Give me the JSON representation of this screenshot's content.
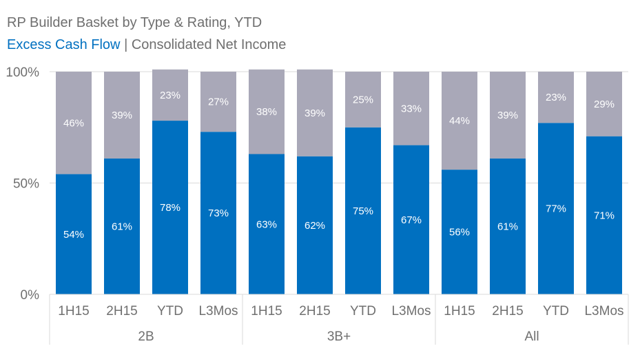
{
  "title": "RP Builder Basket by Type & Rating, YTD",
  "subtitle": {
    "series1": "Excess Cash Flow",
    "separator": "|",
    "series2": "Consolidated Net Income"
  },
  "chart_data": {
    "type": "bar",
    "stacked": true,
    "title": "RP Builder Basket by Type & Rating, YTD",
    "categories": [
      "1H15",
      "2H15",
      "YTD",
      "L3Mos",
      "1H15",
      "2H15",
      "YTD",
      "L3Mos",
      "1H15",
      "2H15",
      "YTD",
      "L3Mos"
    ],
    "groups": [
      {
        "label": "2B",
        "start": 0,
        "count": 4
      },
      {
        "label": "3B+",
        "start": 4,
        "count": 4
      },
      {
        "label": "All",
        "start": 8,
        "count": 4
      }
    ],
    "series": [
      {
        "name": "Excess Cash Flow",
        "color": "#0070c0",
        "label_color": "#ffffff",
        "values": [
          54,
          61,
          78,
          73,
          63,
          62,
          75,
          67,
          56,
          61,
          77,
          71
        ],
        "labels": [
          "54%",
          "61%",
          "78%",
          "73%",
          "63%",
          "62%",
          "75%",
          "67%",
          "56%",
          "61%",
          "77%",
          "71%"
        ]
      },
      {
        "name": "Consolidated Net Income",
        "color": "#a9a8b8",
        "label_color": "#ffffff",
        "values": [
          46,
          39,
          23,
          27,
          38,
          39,
          25,
          33,
          44,
          39,
          23,
          29
        ],
        "labels": [
          "46%",
          "39%",
          "23%",
          "27%",
          "38%",
          "39%",
          "25%",
          "33%",
          "44%",
          "39%",
          "23%",
          "29%"
        ]
      }
    ],
    "ylim": [
      0,
      100
    ],
    "yticks": [
      0,
      50,
      100
    ],
    "ytick_labels": [
      "0%",
      "50%",
      "100%"
    ],
    "xlabel": "",
    "ylabel": "",
    "grid": true,
    "legend": "none"
  }
}
